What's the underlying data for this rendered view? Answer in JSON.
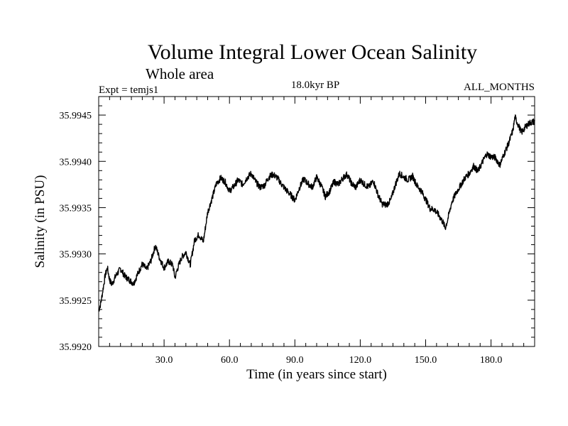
{
  "chart_data": {
    "type": "line",
    "title": "Volume Integral Lower Ocean Salinity",
    "subtitle": "Whole area",
    "left_label": "Expt = temjs1",
    "center_label": "18.0kyr BP",
    "right_label": "ALL_MONTHS",
    "xlabel": "Time (in years since start)",
    "ylabel": "Salinity (in PSU)",
    "xlim": [
      0,
      200
    ],
    "ylim": [
      35.992,
      35.9947
    ],
    "x_ticks": [
      30,
      60,
      90,
      120,
      150,
      180
    ],
    "x_tick_labels": [
      "30.0",
      "60.0",
      "90.0",
      "120.0",
      "150.0",
      "180.0"
    ],
    "y_ticks": [
      35.992,
      35.9925,
      35.993,
      35.9935,
      35.994,
      35.9945
    ],
    "y_tick_labels": [
      "35.9920",
      "35.9925",
      "35.9930",
      "35.9935",
      "35.9940",
      "35.9945"
    ],
    "series": [
      {
        "name": "Salinity",
        "color": "#000000",
        "x": [
          0,
          1,
          2,
          3,
          4,
          5,
          6,
          8,
          10,
          12,
          14,
          16,
          18,
          20,
          22,
          24,
          26,
          28,
          30,
          32,
          34,
          35,
          36,
          38,
          40,
          42,
          44,
          46,
          48,
          50,
          52,
          54,
          56,
          58,
          60,
          62,
          64,
          66,
          68,
          70,
          72,
          74,
          76,
          78,
          80,
          82,
          84,
          86,
          88,
          90,
          92,
          94,
          96,
          98,
          100,
          102,
          104,
          106,
          108,
          110,
          112,
          114,
          116,
          118,
          120,
          122,
          124,
          126,
          128,
          130,
          132,
          134,
          136,
          138,
          140,
          142,
          144,
          146,
          148,
          150,
          152,
          154,
          156,
          158,
          159,
          160,
          162,
          164,
          166,
          168,
          170,
          172,
          174,
          176,
          178,
          180,
          182,
          184,
          186,
          188,
          190,
          191,
          192,
          194,
          196,
          198,
          200
        ],
        "values": [
          35.99239,
          35.99247,
          35.99262,
          35.99277,
          35.99285,
          35.99272,
          35.99267,
          35.99277,
          35.99284,
          35.99276,
          35.99272,
          35.99268,
          35.99279,
          35.99289,
          35.99283,
          35.99293,
          35.99309,
          35.99295,
          35.99285,
          35.99292,
          35.99288,
          35.99274,
          35.99283,
          35.99296,
          35.99302,
          35.99288,
          35.99315,
          35.99321,
          35.99313,
          35.99345,
          35.9936,
          35.99376,
          35.99382,
          35.99378,
          35.99368,
          35.99373,
          35.9938,
          35.99375,
          35.99382,
          35.99387,
          35.99378,
          35.99372,
          35.99374,
          35.99383,
          35.99386,
          35.99382,
          35.99375,
          35.99369,
          35.99364,
          35.99358,
          35.99371,
          35.99381,
          35.99376,
          35.99372,
          35.99383,
          35.99374,
          35.99362,
          35.99368,
          35.99378,
          35.99375,
          35.99382,
          35.99386,
          35.99376,
          35.99372,
          35.9938,
          35.99375,
          35.99372,
          35.99379,
          35.99365,
          35.99354,
          35.99353,
          35.99358,
          35.99374,
          35.99387,
          35.99383,
          35.9938,
          35.99384,
          35.99374,
          35.99368,
          35.99359,
          35.99349,
          35.99348,
          35.99342,
          35.99334,
          35.99328,
          35.99336,
          35.99356,
          35.99366,
          35.99374,
          35.99382,
          35.99387,
          35.99395,
          35.99389,
          35.99399,
          35.99408,
          35.99405,
          35.99404,
          35.99396,
          35.99408,
          35.99419,
          35.99433,
          35.99448,
          35.99442,
          35.99431,
          35.99438,
          35.99442,
          35.99443
        ]
      }
    ]
  }
}
